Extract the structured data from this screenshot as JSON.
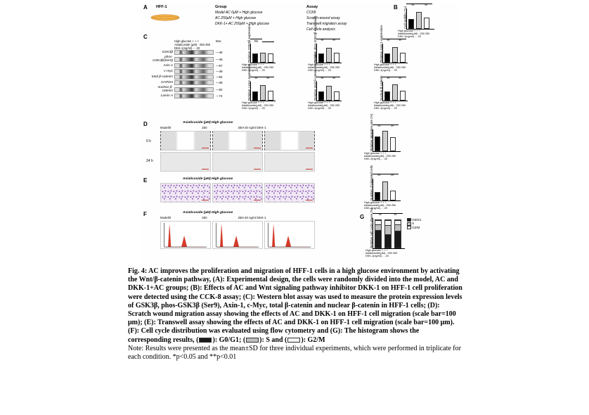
{
  "figure_number": "Fig. 4",
  "caption_title": "AC improves the proliferation and migration of HFF-1 cells in a high glucose environment by activating the Wnt/β-catenin pathway,",
  "caption_parts": {
    "A": "Experimental design, the cells were randomly divided into the model, AC and DKK-1+AC groups;",
    "B": "Effects of AC and Wnt signaling pathway inhibitor DKK-1 on HFF-1 cell proliferation were detected using the CCK-8 assay;",
    "C": "Western blot assay was used to measure the protein expression levels of GSK3β, phos-GSK3β (Ser9), Axin-1, c-Myc, total β-catenin and nuclear β-catenin in HFF-1 cells;",
    "D": "Scratch wound migration assay showing the effects of AC and DKK-1 on HFF-1 cell migration (scale bar=100 μm);",
    "E": "Transwell assay showing the effects of AC and DKK-1 on HFF-1 cell migration (scale bar=100 μm).",
    "F": "Cell cycle distribution was evaluated using flow cytometry and",
    "G": "The histogram shows the corresponding results,"
  },
  "legend_items": [
    {
      "label": "G0/G1",
      "color": "#1a1a1a"
    },
    {
      "label": "S",
      "color": "#bfbfbf"
    },
    {
      "label": "G2/M",
      "color": "#f2f2f2"
    }
  ],
  "note": "Note: Results were presented as the mean±SD for three individual experiments, which were performed in triplicate for each condition. *p<0.05 and **p<0.01",
  "panel_labels": {
    "A": "A",
    "B": "B",
    "C": "C",
    "D": "D",
    "E": "E",
    "F": "F",
    "G": "G"
  },
  "panelA": {
    "cell_label": "HFF-1",
    "cell_fill": "#f4b24a",
    "group_header": "Group",
    "assay_header": "Assay",
    "groups": [
      "Model AC 0μM + High glucose",
      "AC 250μM + High glucose",
      "DKK-1+ AC 250μM + High glucose"
    ],
    "assays": [
      "CCK8",
      "Scratch-wound assay",
      "Transwell migration assay",
      "Cell cycle analysis"
    ]
  },
  "panelB": {
    "ylabel": "Cell viability (%)",
    "ylim": [
      0,
      200
    ],
    "bars": [
      {
        "value": 100,
        "color": "#000000"
      },
      {
        "value": 163,
        "color": "#cfcfcf"
      },
      {
        "value": 111,
        "color": "#ffffff"
      }
    ],
    "sig": [
      "**",
      "**"
    ],
    "x_rows": [
      "High glucose   +    +    +",
      "Asiaticoside(μM)  -   250  250",
      "DKK-1(ng/ml)  -    -    20"
    ]
  },
  "panelC": {
    "header_rows": [
      "High glucose   +    +    +",
      "Asiaticoside (μM)  -   250  250",
      "DKK-1(ng/ml)  -    -    20"
    ],
    "kda_label": "kDa",
    "bands": [
      {
        "name": "GSK3β",
        "kda": "—46"
      },
      {
        "name": "phos-GSK3β(Ser9)",
        "kda": "—46"
      },
      {
        "name": "Axin-1",
        "kda": "—97"
      },
      {
        "name": "c-myc",
        "kda": "—49"
      },
      {
        "name": "total β-catenin",
        "kda": "—92"
      },
      {
        "name": "GAPDH",
        "kda": "—36"
      },
      {
        "name": "nuclear β-catenin",
        "kda": "—92"
      },
      {
        "name": "Lamin A",
        "kda": "—74"
      }
    ],
    "mini_charts": [
      {
        "ylabel": "Relative GSK3β expression",
        "bars": [
          1.0,
          1.05,
          1.0
        ],
        "colors": [
          "#000",
          "#cfcfcf",
          "#fff"
        ],
        "sig": [
          "ns",
          ""
        ]
      },
      {
        "ylabel": "Relative phos-GSK3β expression",
        "bars": [
          1.0,
          1.55,
          1.05
        ],
        "colors": [
          "#000",
          "#cfcfcf",
          "#fff"
        ],
        "sig": [
          "**",
          "**"
        ]
      },
      {
        "ylabel": "Relative Axin-1 expression",
        "bars": [
          1.0,
          1.6,
          1.05
        ],
        "colors": [
          "#000",
          "#cfcfcf",
          "#fff"
        ],
        "sig": [
          "**",
          "**"
        ]
      },
      {
        "ylabel": "Relative c-myc expression",
        "bars": [
          1.0,
          1.65,
          1.05
        ],
        "colors": [
          "#000",
          "#cfcfcf",
          "#fff"
        ],
        "sig": [
          "**",
          "**"
        ]
      },
      {
        "ylabel": "Relative total β-catenin expression",
        "bars": [
          1.0,
          1.55,
          1.0
        ],
        "colors": [
          "#000",
          "#cfcfcf",
          "#fff"
        ],
        "sig": [
          "**",
          "**"
        ]
      },
      {
        "ylabel": "Nuclear β-catenin",
        "bars": [
          1.0,
          1.7,
          1.05
        ],
        "colors": [
          "#000",
          "#cfcfcf",
          "#fff"
        ],
        "sig": [
          "**",
          "**"
        ]
      }
    ],
    "mini_ylim": [
      0,
      2
    ],
    "mini_xrows": [
      "High glucose  +  +  +",
      "Asiaticoside(μM) - 250 250",
      "DKK-1(ng/ml)  -  -  20"
    ]
  },
  "panelD": {
    "col_header": "Asiaticoside (μM)   High glucose",
    "cols": [
      "Model/0",
      "250",
      "250+20 ng/ml DKK-1"
    ],
    "rows": [
      "0 h",
      "24 h"
    ],
    "chart": {
      "ylabel": "Relative migration rate (%)",
      "ylim": [
        0,
        150
      ],
      "bars": [
        {
          "value": 100,
          "color": "#000"
        },
        {
          "value": 138,
          "color": "#cfcfcf"
        },
        {
          "value": 98,
          "color": "#fff"
        }
      ],
      "sig": [
        "**",
        "**"
      ],
      "x_rows": [
        "High glucose  +  +  +",
        "Asiaticoside(μM) - 250 250",
        "DKK-1(ng/ml)  -  -  20"
      ]
    }
  },
  "panelE": {
    "col_header": "Asiaticoside (μM)   High glucose",
    "cols": [
      "Model/0",
      "250",
      "250+20 ng/ml DKK-1"
    ],
    "stain_color": "#8e5bb5",
    "chart": {
      "ylabel": "Number of migrated cells",
      "ylim": [
        0,
        160
      ],
      "bars": [
        {
          "value": 60,
          "color": "#000"
        },
        {
          "value": 140,
          "color": "#cfcfcf"
        },
        {
          "value": 70,
          "color": "#fff"
        }
      ],
      "sig": [
        "**",
        "**"
      ],
      "x_rows": [
        "High glucose  +  +  +",
        "Asiaticoside(μM) - 250 250",
        "DKK-1(ng/ml)  -  -  20"
      ]
    }
  },
  "panelF": {
    "col_header": "Asiaticoside (μM)   High glucose",
    "cols": [
      "Model/0",
      "250",
      "250+20 ng/ml DKK-1"
    ],
    "peak_color": "#d43a2a"
  },
  "panelG": {
    "ylabel": "Relative cell cycle phase (%)",
    "ylim": [
      0,
      110
    ],
    "bars": [
      {
        "segments": [
          64,
          21,
          15
        ]
      },
      {
        "segments": [
          48,
          33,
          19
        ]
      },
      {
        "segments": [
          62,
          22,
          16
        ]
      }
    ],
    "seg_colors": [
      "#1a1a1a",
      "#bfbfbf",
      "#f2f2f2"
    ],
    "legend": [
      "G0/G1",
      "S",
      "G2/M"
    ],
    "sig": [
      "**",
      "**"
    ],
    "x_rows": [
      "High glucose  +  +  +",
      "Asiaticoside(μM) - 250 250",
      "DKK-1(ng/ml)  -  -  20"
    ]
  }
}
